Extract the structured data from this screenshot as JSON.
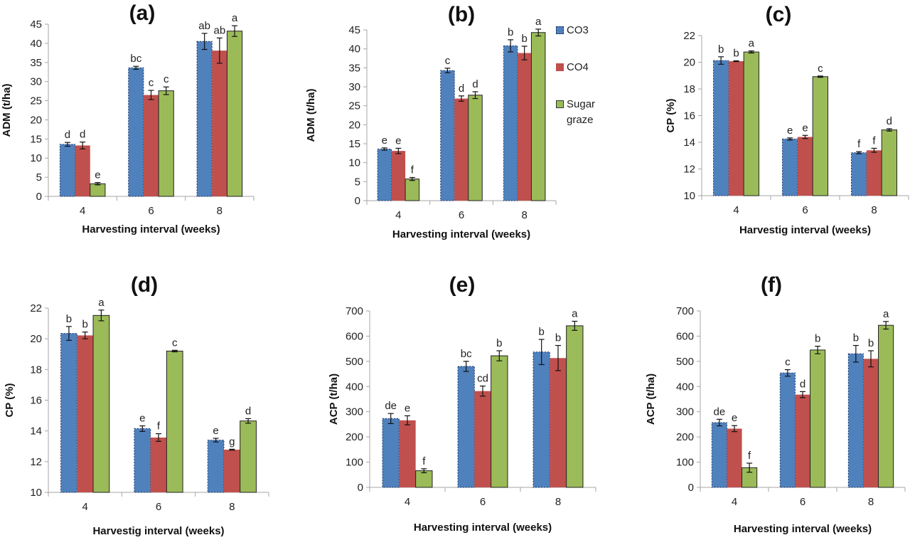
{
  "legend": {
    "items": [
      {
        "label": "CO3",
        "color": "#4f81bd"
      },
      {
        "label": "CO4",
        "color": "#c0504d"
      },
      {
        "label": "Sugar graze",
        "color": "#9bbb59"
      }
    ]
  },
  "chart_data": [
    {
      "type": "bar",
      "title": "(a)",
      "xlabel": "Harvesting interval (weeks)",
      "ylabel": "ADM (t/ha)",
      "categories": [
        "4",
        "6",
        "8"
      ],
      "ylim": [
        0,
        45
      ],
      "yticks": [
        0,
        5,
        10,
        15,
        20,
        25,
        30,
        35,
        40,
        45
      ],
      "series": [
        {
          "name": "CO3",
          "values": [
            13.6,
            33.6,
            40.5
          ],
          "errors": [
            0.5,
            0.4,
            2.1
          ],
          "letters": [
            "d",
            "bc",
            "ab"
          ]
        },
        {
          "name": "CO4",
          "values": [
            13.3,
            26.5,
            38.1
          ],
          "errors": [
            0.9,
            1.2,
            3.3
          ],
          "letters": [
            "d",
            "c",
            "ab"
          ]
        },
        {
          "name": "Sugar graze",
          "values": [
            3.3,
            27.6,
            43.2
          ],
          "errors": [
            0.3,
            1.0,
            1.4
          ],
          "letters": [
            "e",
            "c",
            "a"
          ]
        }
      ]
    },
    {
      "type": "bar",
      "title": "(b)",
      "xlabel": "Harvesting interval (weeks)",
      "ylabel": "ADM (t/ha)",
      "categories": [
        "4",
        "6",
        "8"
      ],
      "ylim": [
        0,
        45
      ],
      "yticks": [
        0,
        5,
        10,
        15,
        20,
        25,
        30,
        35,
        40,
        45
      ],
      "series": [
        {
          "name": "CO3",
          "values": [
            13.6,
            34.3,
            40.8
          ],
          "errors": [
            0.3,
            0.6,
            1.6
          ],
          "letters": [
            "e",
            "c",
            "b"
          ]
        },
        {
          "name": "CO4",
          "values": [
            13.1,
            26.9,
            38.9
          ],
          "errors": [
            0.7,
            0.7,
            1.8
          ],
          "letters": [
            "e",
            "d",
            "b"
          ]
        },
        {
          "name": "Sugar graze",
          "values": [
            5.7,
            27.8,
            44.3
          ],
          "errors": [
            0.4,
            0.9,
            0.9
          ],
          "letters": [
            "f",
            "d",
            "a"
          ]
        }
      ]
    },
    {
      "type": "bar",
      "title": "(c)",
      "xlabel": "Harvestig interval (weeks)",
      "ylabel": "CP (%)",
      "categories": [
        "4",
        "6",
        "8"
      ],
      "ylim": [
        10,
        22
      ],
      "yticks": [
        10,
        12,
        14,
        16,
        18,
        20,
        22
      ],
      "series": [
        {
          "name": "CO3",
          "values": [
            20.13,
            14.25,
            13.22
          ],
          "errors": [
            0.28,
            0.08,
            0.08
          ],
          "letters": [
            "b",
            "e",
            "f"
          ]
        },
        {
          "name": "CO4",
          "values": [
            20.08,
            14.4,
            13.4
          ],
          "errors": [
            0.03,
            0.12,
            0.15
          ],
          "letters": [
            "b",
            "e",
            "f"
          ]
        },
        {
          "name": "Sugar graze",
          "values": [
            20.77,
            18.92,
            14.93
          ],
          "errors": [
            0.08,
            0.05,
            0.09
          ],
          "letters": [
            "a",
            "c",
            "d"
          ]
        }
      ]
    },
    {
      "type": "bar",
      "title": "(d)",
      "xlabel": "Harvestig interval (weeks)",
      "ylabel": "CP (%)",
      "categories": [
        "4",
        "6",
        "8"
      ],
      "ylim": [
        10,
        22
      ],
      "yticks": [
        10,
        12,
        14,
        16,
        18,
        20,
        22
      ],
      "series": [
        {
          "name": "CO3",
          "values": [
            20.35,
            14.15,
            13.4
          ],
          "errors": [
            0.45,
            0.18,
            0.12
          ],
          "letters": [
            "b",
            "e",
            "e"
          ]
        },
        {
          "name": "CO4",
          "values": [
            20.22,
            13.57,
            12.78
          ],
          "errors": [
            0.22,
            0.25,
            0.03
          ],
          "letters": [
            "b",
            "f",
            "g"
          ]
        },
        {
          "name": "Sugar graze",
          "values": [
            21.52,
            19.2,
            14.65
          ],
          "errors": [
            0.35,
            0.05,
            0.15
          ],
          "letters": [
            "a",
            "c",
            "d"
          ]
        }
      ]
    },
    {
      "type": "bar",
      "title": "(e)",
      "xlabel": "Harvesting interval (weeks)",
      "ylabel": "ACP (t/ha)",
      "categories": [
        "4",
        "6",
        "8"
      ],
      "ylim": [
        0,
        700
      ],
      "yticks": [
        0,
        100,
        200,
        300,
        400,
        500,
        600,
        700
      ],
      "series": [
        {
          "name": "CO3",
          "values": [
            273,
            480,
            537
          ],
          "errors": [
            20,
            20,
            50
          ],
          "letters": [
            "de",
            "bc",
            "b"
          ]
        },
        {
          "name": "CO4",
          "values": [
            266,
            382,
            513
          ],
          "errors": [
            18,
            20,
            50
          ],
          "letters": [
            "e",
            "cd",
            "b"
          ]
        },
        {
          "name": "Sugar graze",
          "values": [
            66,
            522,
            641
          ],
          "errors": [
            8,
            20,
            18
          ],
          "letters": [
            "f",
            "b",
            "a"
          ]
        }
      ]
    },
    {
      "type": "bar",
      "title": "(f)",
      "xlabel": "Harvesting interval (weeks)",
      "ylabel": "ACP (t/ha)",
      "categories": [
        "4",
        "6",
        "8"
      ],
      "ylim": [
        0,
        700
      ],
      "yticks": [
        0,
        100,
        200,
        300,
        400,
        500,
        600,
        700
      ],
      "series": [
        {
          "name": "CO3",
          "values": [
            257,
            454,
            530
          ],
          "errors": [
            13,
            13,
            33
          ],
          "letters": [
            "de",
            "c",
            "b"
          ]
        },
        {
          "name": "CO4",
          "values": [
            233,
            368,
            510
          ],
          "errors": [
            12,
            12,
            32
          ],
          "letters": [
            "e",
            "d",
            "b"
          ]
        },
        {
          "name": "Sugar graze",
          "values": [
            78,
            545,
            643
          ],
          "errors": [
            18,
            15,
            15
          ],
          "letters": [
            "f",
            "b",
            "a"
          ]
        }
      ]
    }
  ]
}
